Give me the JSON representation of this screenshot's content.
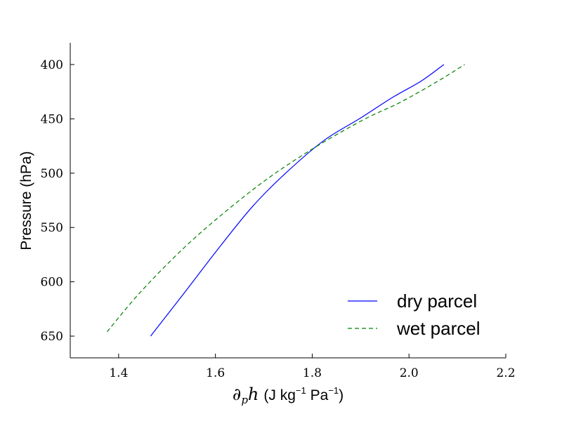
{
  "chart_data": {
    "type": "line",
    "xlabel": {
      "symbol": "∂",
      "symbol_sub": "p",
      "symbol_var": "h",
      "units_open": "(J kg",
      "units_exp1": "−1",
      "units_mid": " Pa",
      "units_exp2": "−1",
      "units_close": ")"
    },
    "ylabel": "Pressure (hPa)",
    "xlim": [
      1.3,
      2.2
    ],
    "ylim": [
      670,
      380
    ],
    "y_inverted": true,
    "x_ticks": [
      1.4,
      1.6,
      1.8,
      2.0,
      2.2
    ],
    "x_tick_labels": [
      "1.4",
      "1.6",
      "1.8",
      "2.0",
      "2.2"
    ],
    "y_ticks": [
      400,
      450,
      500,
      550,
      600,
      650
    ],
    "y_tick_labels": [
      "400",
      "450",
      "500",
      "550",
      "600",
      "650"
    ],
    "grid": false,
    "legend_position": "lower-right",
    "series": [
      {
        "name": "dry parcel",
        "color": "#0000ff",
        "style": "solid",
        "points": [
          {
            "x": 1.466,
            "y": 650
          },
          {
            "x": 1.536,
            "y": 610
          },
          {
            "x": 1.605,
            "y": 570
          },
          {
            "x": 1.676,
            "y": 531
          },
          {
            "x": 1.745,
            "y": 500
          },
          {
            "x": 1.824,
            "y": 470
          },
          {
            "x": 1.897,
            "y": 450
          },
          {
            "x": 1.967,
            "y": 430
          },
          {
            "x": 2.026,
            "y": 415
          },
          {
            "x": 2.072,
            "y": 400
          }
        ]
      },
      {
        "name": "wet parcel",
        "color": "#008000",
        "style": "dashed",
        "points": [
          {
            "x": 1.376,
            "y": 646
          },
          {
            "x": 1.444,
            "y": 610
          },
          {
            "x": 1.532,
            "y": 570
          },
          {
            "x": 1.619,
            "y": 536
          },
          {
            "x": 1.708,
            "y": 505
          },
          {
            "x": 1.803,
            "y": 477
          },
          {
            "x": 1.905,
            "y": 451
          },
          {
            "x": 1.981,
            "y": 435
          },
          {
            "x": 2.057,
            "y": 416
          },
          {
            "x": 2.115,
            "y": 400
          }
        ]
      }
    ]
  }
}
